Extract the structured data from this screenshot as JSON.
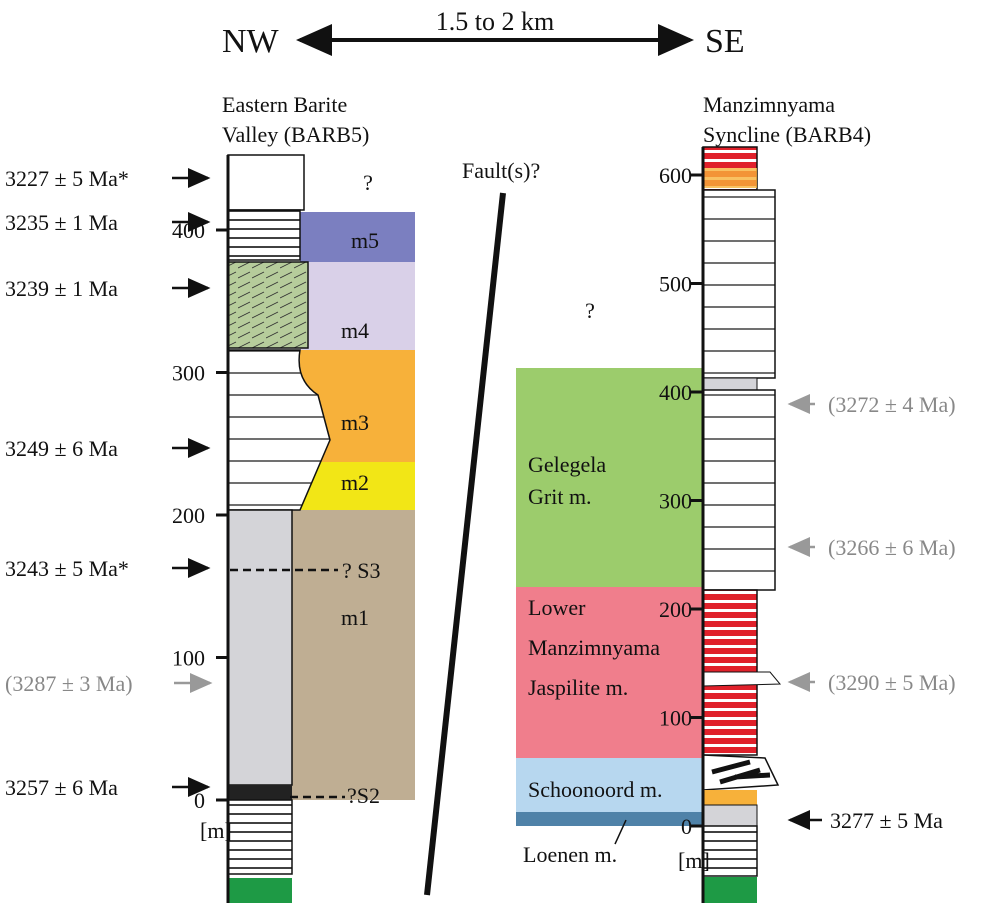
{
  "header": {
    "left": "NW",
    "right": "SE",
    "distance": "1.5 to 2 km"
  },
  "fault_label": "Fault(s)?",
  "left_column": {
    "title": [
      "Eastern Barite",
      "Valley (BARB5)"
    ],
    "unit_label": "[m]",
    "scale_ticks": [
      0,
      100,
      200,
      300,
      400
    ],
    "unknown": "?",
    "members": [
      "m5",
      "m4",
      "m3",
      "m2",
      "m1"
    ],
    "surfaces": [
      "? S3",
      "?S2"
    ],
    "ages": [
      "3227 ± 5 Ma*",
      "3235 ± 1 Ma",
      "3239 ± 1 Ma",
      "3249 ± 6 Ma",
      "3243 ± 5 Ma*",
      "(3287 ± 3 Ma)",
      "3257 ± 6 Ma"
    ]
  },
  "right_column": {
    "title": [
      "Manzimnyama",
      "Syncline (BARB4)"
    ],
    "unit_label": "[m]",
    "scale_ticks": [
      0,
      100,
      200,
      300,
      400,
      500,
      600
    ],
    "unknown": "?",
    "members": [
      [
        "Gelegela",
        "Grit m."
      ],
      [
        "Lower",
        "Manzimnyama",
        "Jaspilite m."
      ],
      "Schoonoord m.",
      "Loenen m."
    ],
    "ages": [
      "(3272 ± 4 Ma)",
      "(3266 ± 6 Ma)",
      "(3290 ± 5 Ma)",
      "3277 ± 5 Ma"
    ]
  }
}
